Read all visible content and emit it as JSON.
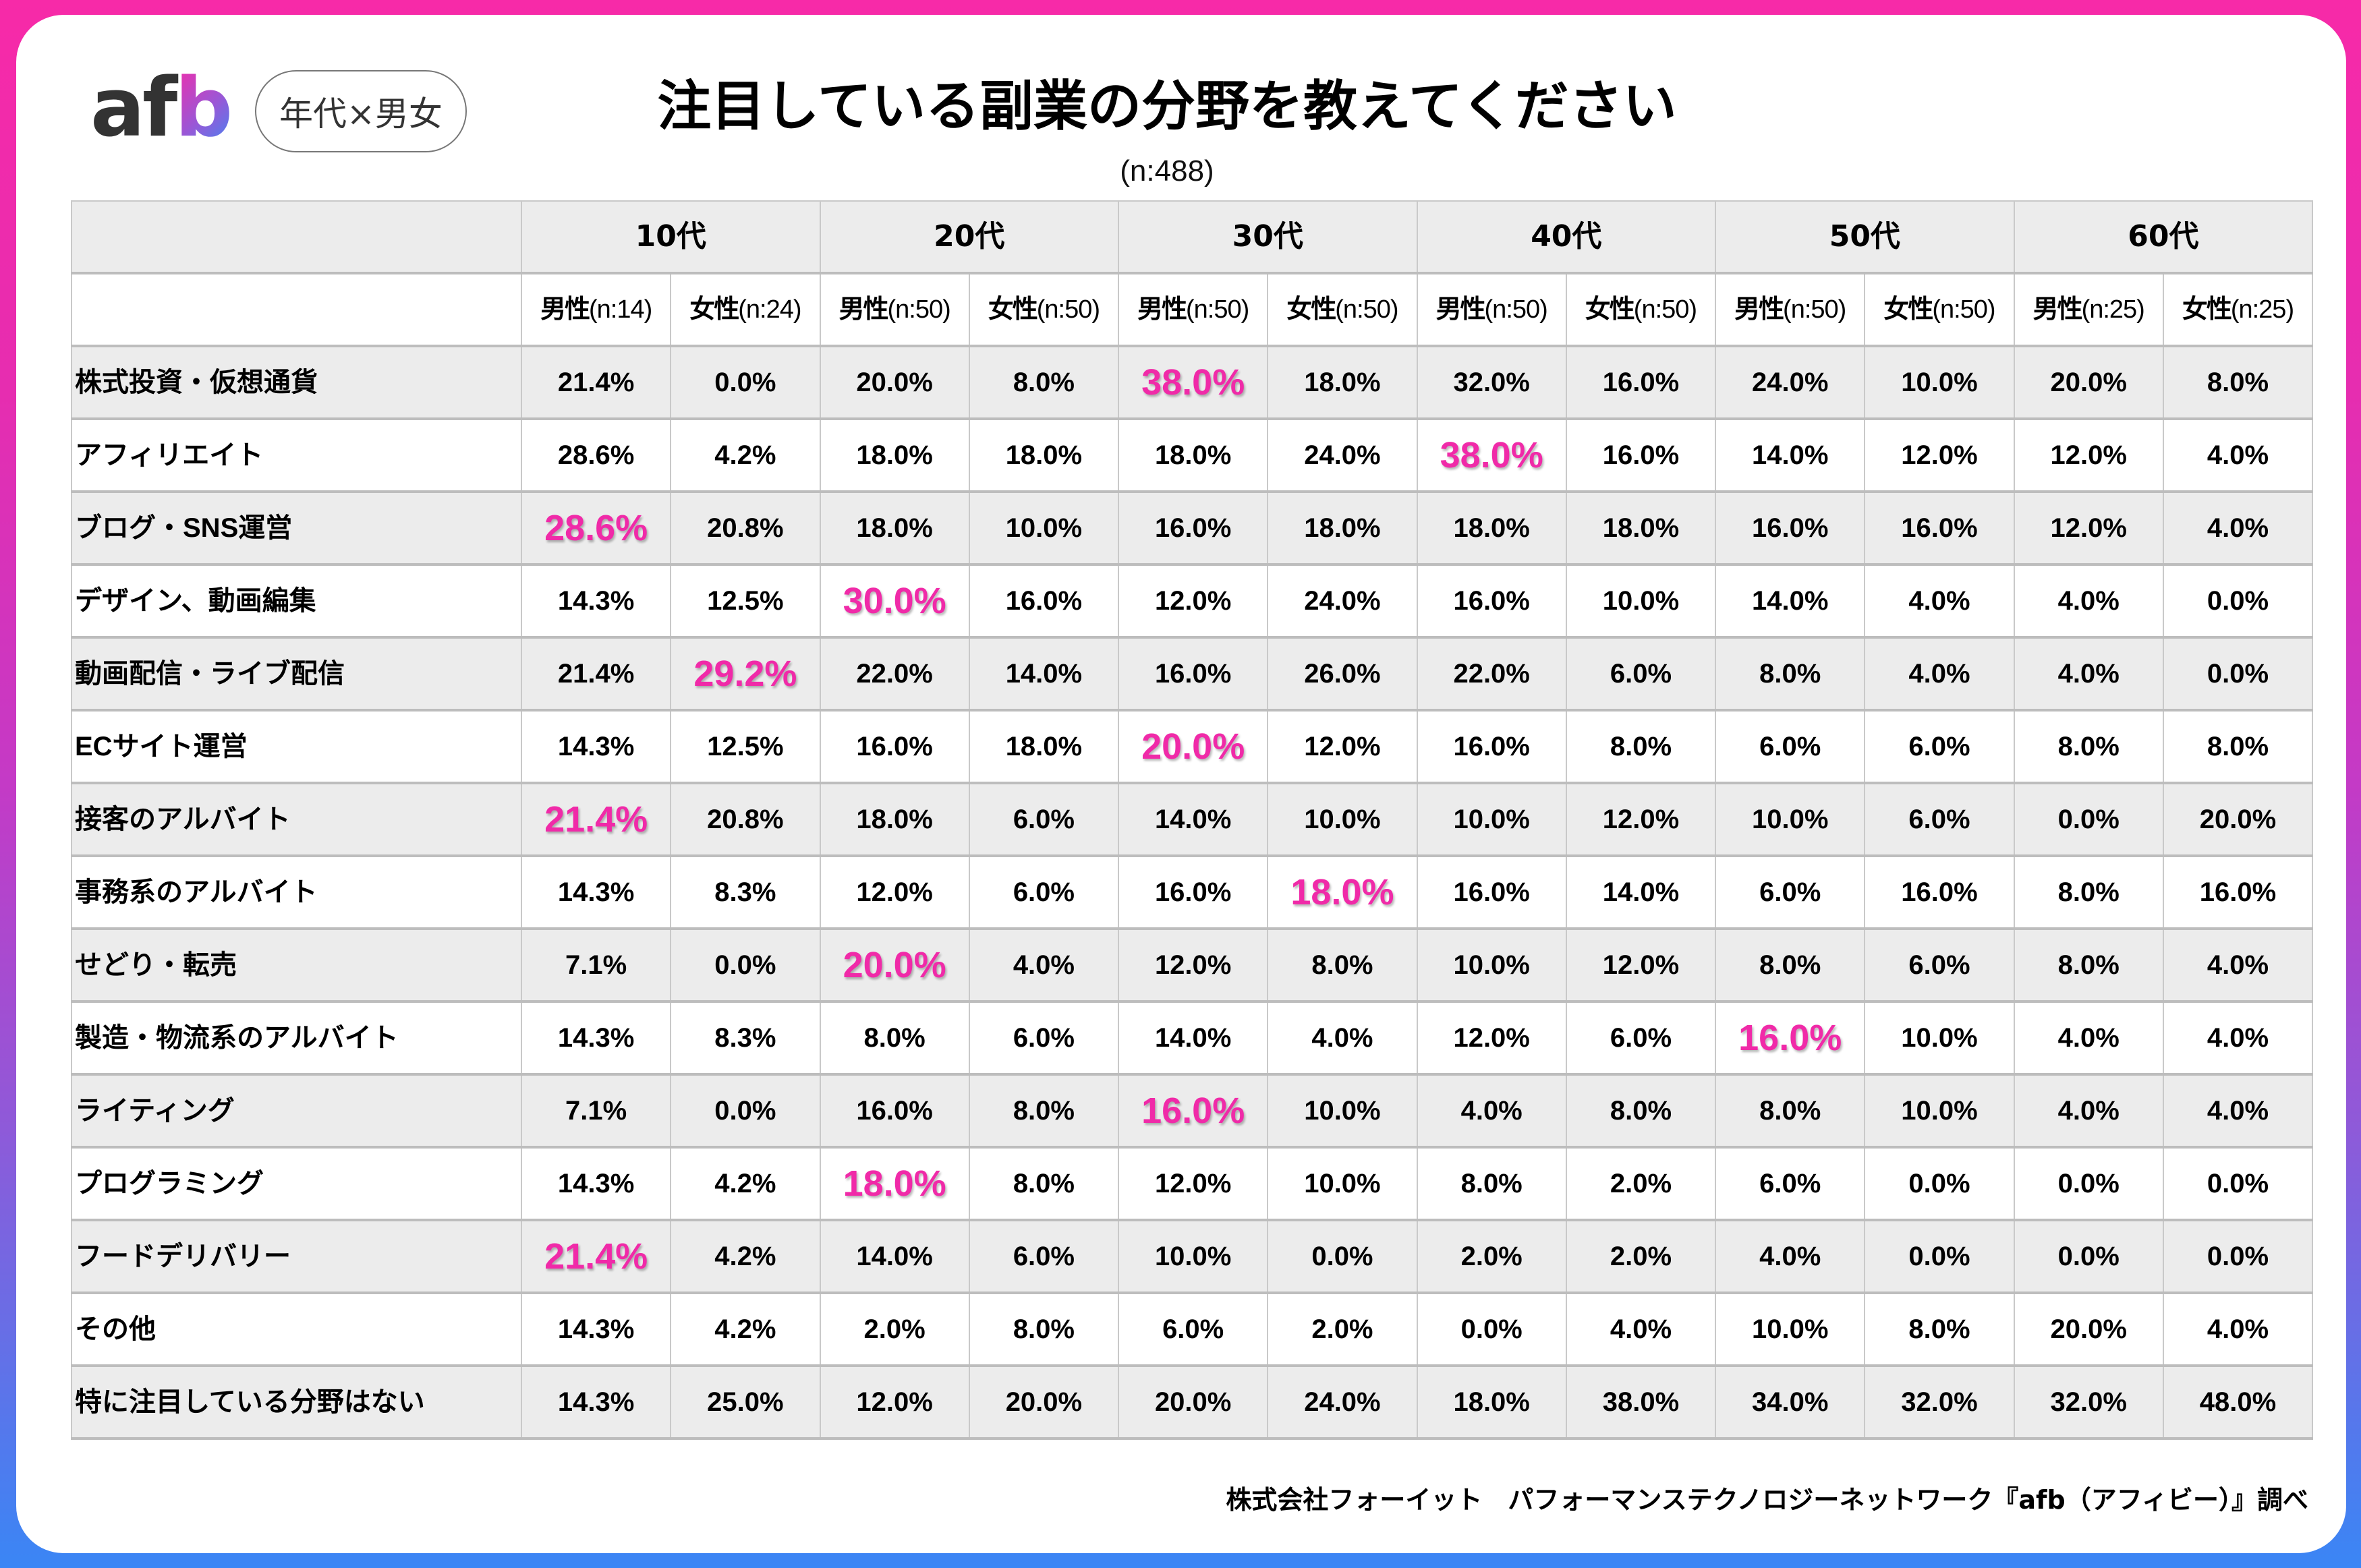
{
  "brand": {
    "logo_text_dark": "af",
    "logo_text_gradient": "b",
    "accent_pink": "#f02aa8",
    "accent_blue": "#3a86f5"
  },
  "tag_label": "年代×男女",
  "title": "注目している副業の分野を教えてください",
  "subtitle": "(n:488)",
  "table": {
    "age_groups": [
      "10代",
      "20代",
      "30代",
      "40代",
      "50代",
      "60代"
    ],
    "sub_headers": [
      {
        "gender": "男性",
        "n": "(n:14)"
      },
      {
        "gender": "女性",
        "n": "(n:24)"
      },
      {
        "gender": "男性",
        "n": "(n:50)"
      },
      {
        "gender": "女性",
        "n": "(n:50)"
      },
      {
        "gender": "男性",
        "n": "(n:50)"
      },
      {
        "gender": "女性",
        "n": "(n:50)"
      },
      {
        "gender": "男性",
        "n": "(n:50)"
      },
      {
        "gender": "女性",
        "n": "(n:50)"
      },
      {
        "gender": "男性",
        "n": "(n:50)"
      },
      {
        "gender": "女性",
        "n": "(n:50)"
      },
      {
        "gender": "男性",
        "n": "(n:25)"
      },
      {
        "gender": "女性",
        "n": "(n:25)"
      }
    ],
    "rows": [
      {
        "label": "株式投資・仮想通貨",
        "values": [
          "21.4%",
          "0.0%",
          "20.0%",
          "8.0%",
          "38.0%",
          "18.0%",
          "32.0%",
          "16.0%",
          "24.0%",
          "10.0%",
          "20.0%",
          "8.0%"
        ],
        "highlight": [
          4
        ]
      },
      {
        "label": "アフィリエイト",
        "values": [
          "28.6%",
          "4.2%",
          "18.0%",
          "18.0%",
          "18.0%",
          "24.0%",
          "38.0%",
          "16.0%",
          "14.0%",
          "12.0%",
          "12.0%",
          "4.0%"
        ],
        "highlight": [
          6
        ]
      },
      {
        "label": "ブログ・SNS運営",
        "values": [
          "28.6%",
          "20.8%",
          "18.0%",
          "10.0%",
          "16.0%",
          "18.0%",
          "18.0%",
          "18.0%",
          "16.0%",
          "16.0%",
          "12.0%",
          "4.0%"
        ],
        "highlight": [
          0
        ]
      },
      {
        "label": "デザイン、動画編集",
        "values": [
          "14.3%",
          "12.5%",
          "30.0%",
          "16.0%",
          "12.0%",
          "24.0%",
          "16.0%",
          "10.0%",
          "14.0%",
          "4.0%",
          "4.0%",
          "0.0%"
        ],
        "highlight": [
          2
        ]
      },
      {
        "label": "動画配信・ライブ配信",
        "values": [
          "21.4%",
          "29.2%",
          "22.0%",
          "14.0%",
          "16.0%",
          "26.0%",
          "22.0%",
          "6.0%",
          "8.0%",
          "4.0%",
          "4.0%",
          "0.0%"
        ],
        "highlight": [
          1
        ]
      },
      {
        "label": "ECサイト運営",
        "values": [
          "14.3%",
          "12.5%",
          "16.0%",
          "18.0%",
          "20.0%",
          "12.0%",
          "16.0%",
          "8.0%",
          "6.0%",
          "6.0%",
          "8.0%",
          "8.0%"
        ],
        "highlight": [
          4
        ]
      },
      {
        "label": "接客のアルバイト",
        "values": [
          "21.4%",
          "20.8%",
          "18.0%",
          "6.0%",
          "14.0%",
          "10.0%",
          "10.0%",
          "12.0%",
          "10.0%",
          "6.0%",
          "0.0%",
          "20.0%"
        ],
        "highlight": [
          0
        ]
      },
      {
        "label": "事務系のアルバイト",
        "values": [
          "14.3%",
          "8.3%",
          "12.0%",
          "6.0%",
          "16.0%",
          "18.0%",
          "16.0%",
          "14.0%",
          "6.0%",
          "16.0%",
          "8.0%",
          "16.0%"
        ],
        "highlight": [
          5
        ]
      },
      {
        "label": "せどり・転売",
        "values": [
          "7.1%",
          "0.0%",
          "20.0%",
          "4.0%",
          "12.0%",
          "8.0%",
          "10.0%",
          "12.0%",
          "8.0%",
          "6.0%",
          "8.0%",
          "4.0%"
        ],
        "highlight": [
          2
        ]
      },
      {
        "label": "製造・物流系のアルバイト",
        "values": [
          "14.3%",
          "8.3%",
          "8.0%",
          "6.0%",
          "14.0%",
          "4.0%",
          "12.0%",
          "6.0%",
          "16.0%",
          "10.0%",
          "4.0%",
          "4.0%"
        ],
        "highlight": [
          8
        ]
      },
      {
        "label": "ライティング",
        "values": [
          "7.1%",
          "0.0%",
          "16.0%",
          "8.0%",
          "16.0%",
          "10.0%",
          "4.0%",
          "8.0%",
          "8.0%",
          "10.0%",
          "4.0%",
          "4.0%"
        ],
        "highlight": [
          4
        ]
      },
      {
        "label": "プログラミング",
        "values": [
          "14.3%",
          "4.2%",
          "18.0%",
          "8.0%",
          "12.0%",
          "10.0%",
          "8.0%",
          "2.0%",
          "6.0%",
          "0.0%",
          "0.0%",
          "0.0%"
        ],
        "highlight": [
          2
        ]
      },
      {
        "label": "フードデリバリー",
        "values": [
          "21.4%",
          "4.2%",
          "14.0%",
          "6.0%",
          "10.0%",
          "0.0%",
          "2.0%",
          "2.0%",
          "4.0%",
          "0.0%",
          "0.0%",
          "0.0%"
        ],
        "highlight": [
          0
        ]
      },
      {
        "label": "その他",
        "values": [
          "14.3%",
          "4.2%",
          "2.0%",
          "8.0%",
          "6.0%",
          "2.0%",
          "0.0%",
          "4.0%",
          "10.0%",
          "8.0%",
          "20.0%",
          "4.0%"
        ],
        "highlight": []
      },
      {
        "label": "特に注目している分野はない",
        "values": [
          "14.3%",
          "25.0%",
          "12.0%",
          "20.0%",
          "20.0%",
          "24.0%",
          "18.0%",
          "38.0%",
          "34.0%",
          "32.0%",
          "32.0%",
          "48.0%"
        ],
        "highlight": []
      }
    ]
  },
  "footer": "株式会社フォーイット　パフォーマンステクノロジーネットワーク『afb（アフィビー）』調べ"
}
